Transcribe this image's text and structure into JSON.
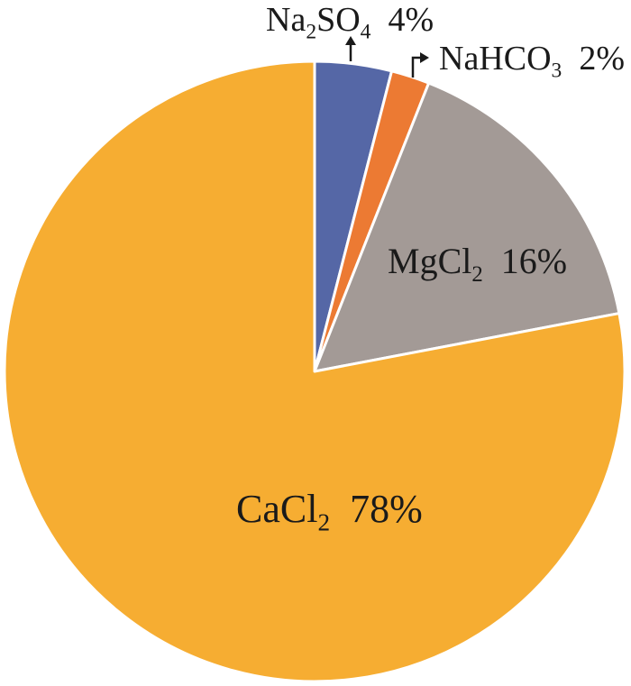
{
  "chart_data": {
    "type": "pie",
    "title": "",
    "slices": [
      {
        "label": "Na2SO4",
        "label_base": "Na",
        "label_sub": "2",
        "label_rest": "SO",
        "label_sub2": "4",
        "value": 4,
        "value_text": "4%",
        "color": "#5567a6"
      },
      {
        "label": "NaHCO3",
        "label_base": "NaHCO",
        "label_sub": "3",
        "label_rest": "",
        "label_sub2": "",
        "value": 2,
        "value_text": "2%",
        "color": "#ec7a33"
      },
      {
        "label": "MgCl2",
        "label_base": "MgCl",
        "label_sub": "2",
        "label_rest": "",
        "label_sub2": "",
        "value": 16,
        "value_text": "16%",
        "color": "#a39a96"
      },
      {
        "label": "CaCl2",
        "label_base": "CaCl",
        "label_sub": "2",
        "label_rest": "",
        "label_sub2": "",
        "value": 78,
        "value_text": "78%",
        "color": "#f6ad32"
      }
    ],
    "start_angle_deg": 0,
    "direction": "clockwise",
    "slice_border_color": "#ffffff"
  }
}
